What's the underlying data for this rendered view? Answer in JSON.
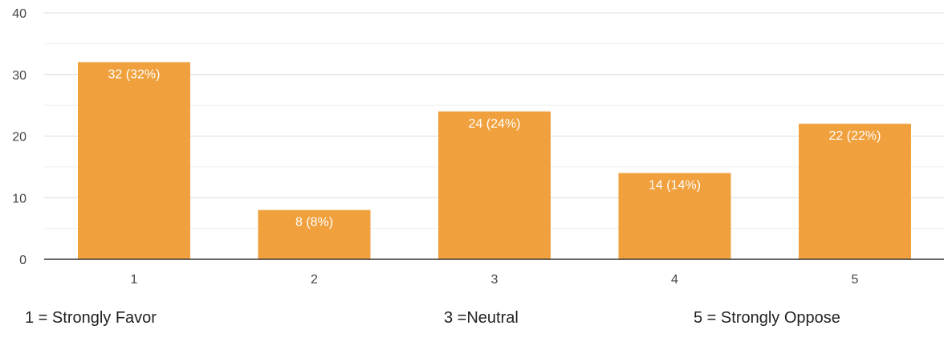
{
  "chart_data": {
    "type": "bar",
    "title": "",
    "xlabel": "",
    "ylabel": "",
    "categories": [
      "1",
      "2",
      "3",
      "4",
      "5"
    ],
    "values": [
      32,
      8,
      24,
      14,
      22
    ],
    "data_labels": [
      "32 (32%)",
      "8 (8%)",
      "24 (24%)",
      "14 (14%)",
      "22 (22%)"
    ],
    "ylim": [
      0,
      40
    ],
    "yticks": [
      0,
      10,
      20,
      30,
      40
    ],
    "ytick_labels": [
      "0",
      "10",
      "20",
      "30",
      "40"
    ],
    "grid": true,
    "bar_color": "#f0a03c"
  },
  "legend_notes": [
    "1 = Strongly Favor",
    "3 =Neutral",
    "5 = Strongly Oppose"
  ]
}
